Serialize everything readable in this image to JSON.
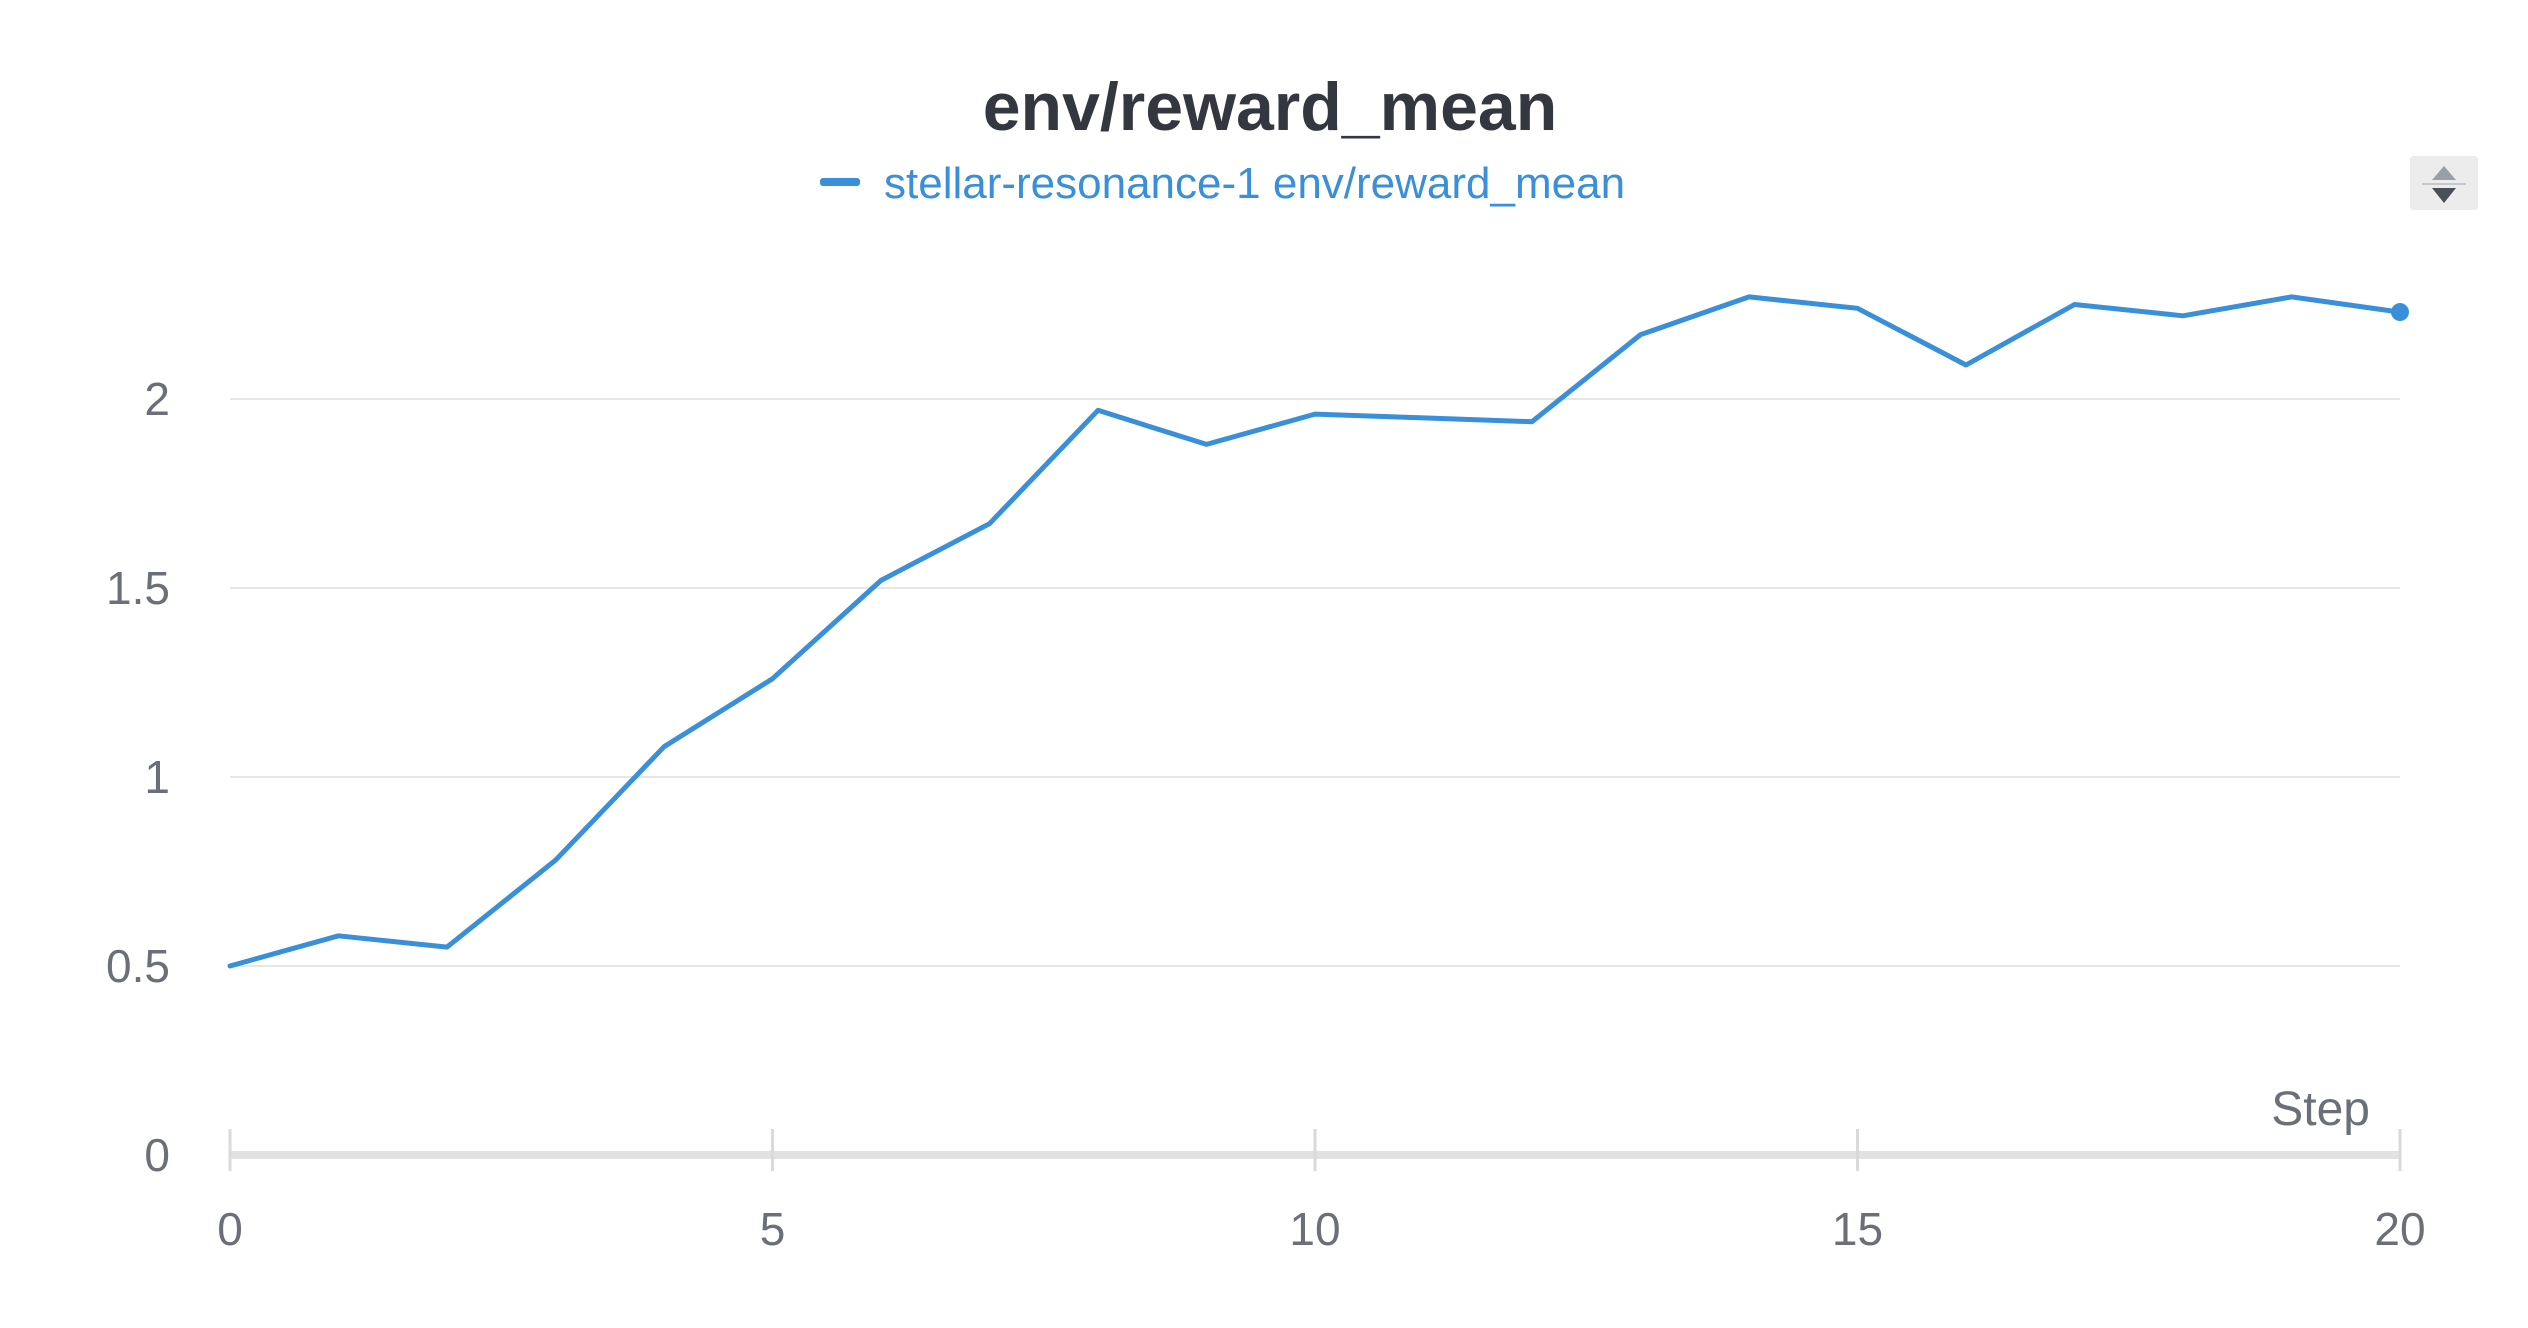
{
  "chart_data": {
    "type": "line",
    "title": "env/reward_mean",
    "xlabel": "Step",
    "ylabel": "",
    "xlim": [
      0,
      20
    ],
    "ylim": [
      0,
      2.5
    ],
    "x_ticks": [
      "0",
      "5",
      "10",
      "15",
      "20"
    ],
    "y_ticks": [
      "0",
      "0.5",
      "1",
      "1.5",
      "2"
    ],
    "grid": true,
    "legend_position": "top-center",
    "series": [
      {
        "name": "stellar-resonance-1 env/reward_mean",
        "color": "#3a8fd9",
        "x": [
          0,
          1,
          2,
          3,
          4,
          5,
          6,
          7,
          8,
          9,
          10,
          11,
          12,
          13,
          14,
          15,
          16,
          17,
          18,
          19,
          20
        ],
        "values": [
          0.5,
          0.58,
          0.55,
          0.78,
          1.08,
          1.26,
          1.52,
          1.67,
          1.97,
          1.88,
          1.96,
          1.95,
          1.94,
          2.17,
          2.27,
          2.24,
          2.09,
          2.25,
          2.22,
          2.27,
          2.23
        ]
      }
    ]
  },
  "controls": {
    "sort_icon": "sort-up-down-icon"
  }
}
